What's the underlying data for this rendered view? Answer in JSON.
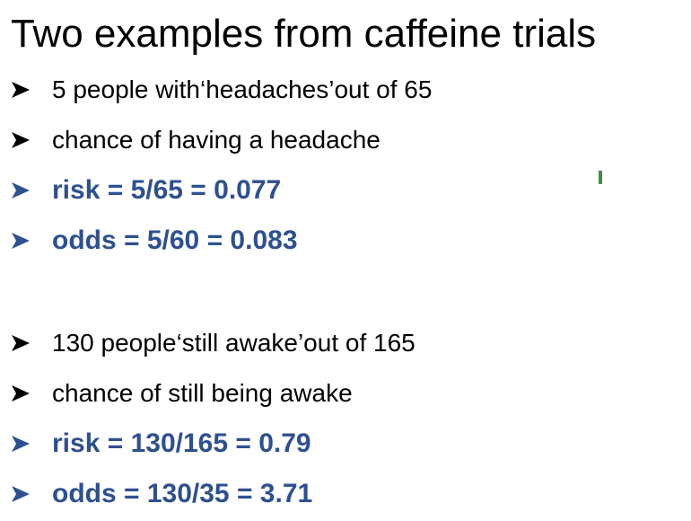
{
  "title": "Two examples from caffeine trials",
  "section1": {
    "items": [
      {
        "text": "5 people with‘headaches’out of 65",
        "style": "plain"
      },
      {
        "text": "chance of having a headache",
        "style": "plain"
      },
      {
        "text": "risk = 5/65 = 0.077",
        "style": "emph"
      },
      {
        "text": "odds = 5/60 = 0.083",
        "style": "emph"
      }
    ]
  },
  "section2": {
    "items": [
      {
        "text": "130 people‘still awake’out of 165",
        "style": "plain"
      },
      {
        "text": "chance of still being awake",
        "style": "plain"
      },
      {
        "text": "risk = 130/165 = 0.79",
        "style": "emph"
      },
      {
        "text": "odds = 130/35 = 3.71",
        "style": "emph"
      }
    ]
  },
  "colors": {
    "emphasis": "#2E5090",
    "text": "#000000",
    "mark": "#3c8f4a"
  },
  "icons": {
    "bullet": "arrowhead-bullet-icon"
  }
}
